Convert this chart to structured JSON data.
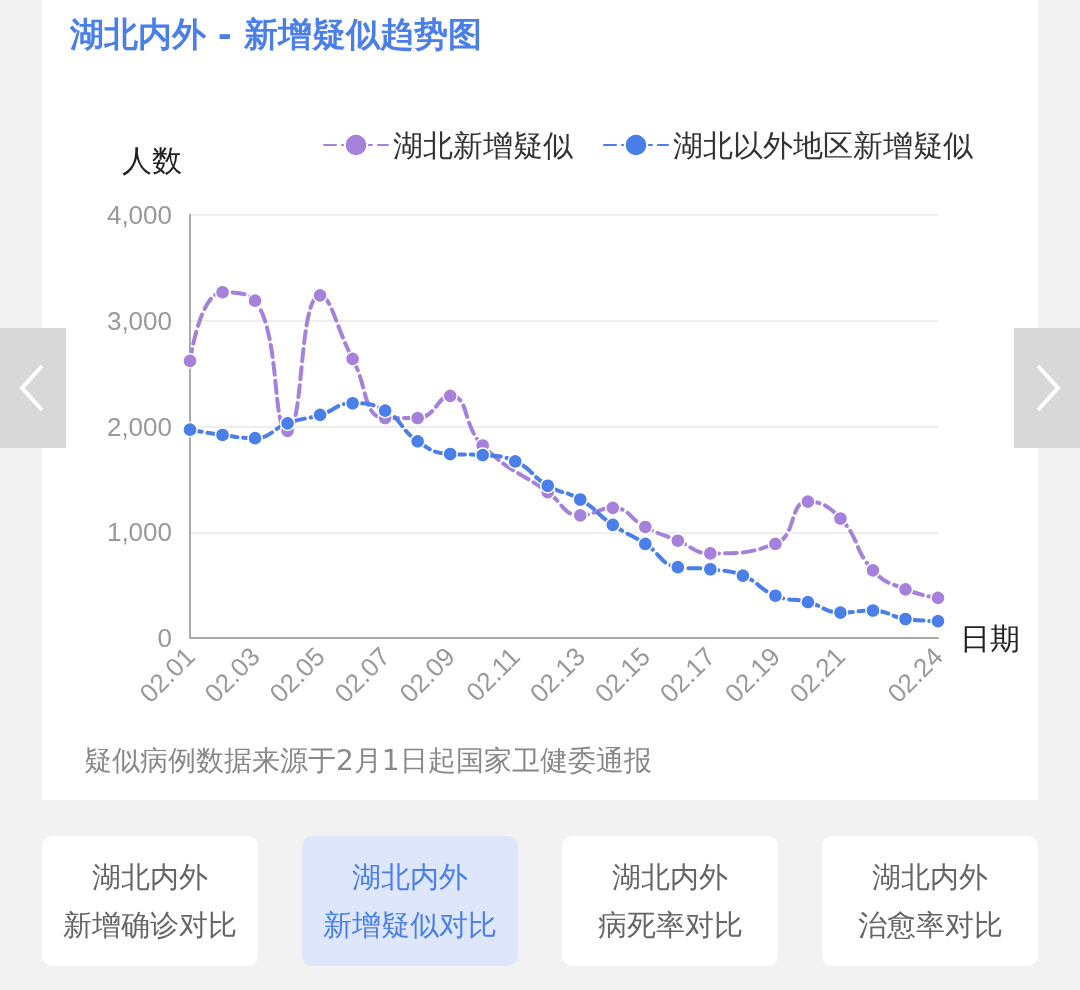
{
  "chart_data": {
    "type": "line",
    "title": "湖北内外 - 新增疑似趋势图",
    "xlabel": "日期",
    "ylabel": "人数",
    "categories": [
      "02.01",
      null,
      "02.03",
      null,
      "02.05",
      null,
      "02.07",
      null,
      "02.09",
      null,
      "02.11",
      null,
      "02.13",
      null,
      "02.15",
      null,
      "02.17",
      null,
      "02.19",
      null,
      "02.21",
      null,
      null,
      "02.24"
    ],
    "series": [
      {
        "name": "湖北新增疑似",
        "color": "#a681db",
        "values": [
          2620,
          3270,
          3190,
          1960,
          3240,
          2640,
          2080,
          2080,
          2290,
          1820,
          null,
          1380,
          1160,
          1230,
          1050,
          920,
          800,
          null,
          890,
          1290,
          1130,
          640,
          460,
          380
        ]
      },
      {
        "name": "湖北以外地区新增疑似",
        "color": "#4a7ee8",
        "values": [
          1970,
          1920,
          1890,
          2030,
          2110,
          2220,
          2150,
          1860,
          1740,
          1730,
          1670,
          1440,
          1310,
          1070,
          890,
          670,
          650,
          590,
          400,
          340,
          240,
          260,
          180,
          160
        ]
      }
    ],
    "ylim": [
      0,
      4000
    ],
    "yticks": [
      0,
      {
        "value": 1000,
        "label": "1,000"
      },
      {
        "value": 2000,
        "label": "2,000"
      },
      {
        "value": 3000,
        "label": "3,000"
      },
      {
        "value": 4000,
        "label": "4,000"
      }
    ],
    "grid": "y",
    "legend": "top right",
    "marker": "circle",
    "line_style": "dashed",
    "annotations": [
      "疑似病例数据来源于2月1日起国家卫健委通报",
      "湖北内外",
      "新增确诊对比",
      "湖北内外",
      "新增疑似对比",
      "湖北内外",
      "病死率对比",
      "湖北内外",
      "治愈率对比"
    ]
  }
}
